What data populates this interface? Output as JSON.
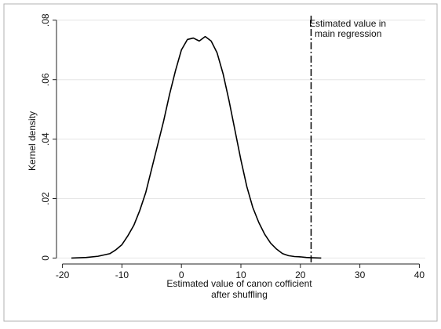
{
  "chart_data": {
    "type": "line",
    "xlabel_lines": [
      "Estimated value of canon cofficient",
      "after shuffling"
    ],
    "ylabel": "Kernel density",
    "xlim": [
      -21,
      41
    ],
    "ylim": [
      -0.002,
      0.081
    ],
    "x_ticks": [
      -20,
      -10,
      0,
      10,
      20,
      30,
      40
    ],
    "x_tick_labels": [
      "-20",
      "-10",
      "0",
      "10",
      "20",
      "30",
      "40"
    ],
    "y_ticks": [
      0,
      0.02,
      0.04,
      0.06,
      0.08
    ],
    "y_tick_labels": [
      "0",
      ".02",
      ".04",
      ".06",
      ".08"
    ],
    "grid": true,
    "series": [
      {
        "x": [
          -18.5,
          -16,
          -14,
          -12,
          -11,
          -10,
          -9,
          -8,
          -7,
          -6,
          -5,
          -4,
          -3,
          -2,
          -1,
          0,
          1,
          2,
          3,
          4,
          5,
          6,
          7,
          8,
          9,
          10,
          11,
          12,
          13,
          14,
          15,
          16,
          17,
          18,
          19,
          20,
          21,
          22,
          23.5
        ],
        "y": [
          0,
          0.0002,
          0.0006,
          0.0015,
          0.0028,
          0.0045,
          0.0075,
          0.011,
          0.016,
          0.022,
          0.03,
          0.038,
          0.046,
          0.055,
          0.063,
          0.07,
          0.0735,
          0.074,
          0.073,
          0.0745,
          0.073,
          0.069,
          0.062,
          0.053,
          0.043,
          0.033,
          0.024,
          0.017,
          0.012,
          0.008,
          0.005,
          0.003,
          0.0015,
          0.0008,
          0.0005,
          0.0004,
          0.0002,
          0.0001,
          0
        ]
      }
    ],
    "reference_line": {
      "x": 21.8,
      "label_lines": [
        "Estimated value in",
        "main regression"
      ]
    }
  }
}
